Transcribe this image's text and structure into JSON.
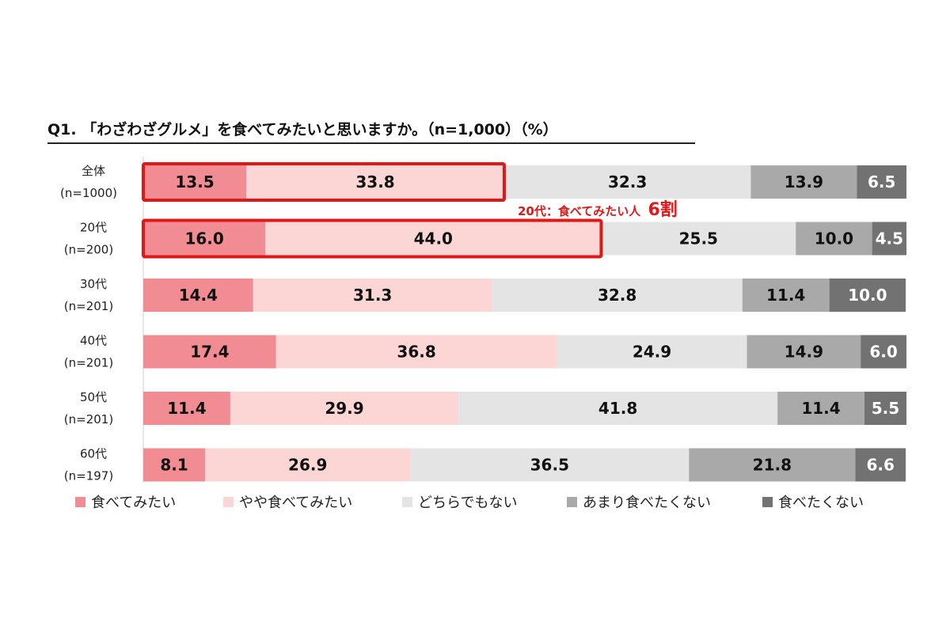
{
  "chart_data": {
    "type": "bar",
    "orientation": "horizontal-stacked-100",
    "title": "Q1. 「わざわざグルメ」を食べてみたいと思いますか。（n=1,000）（%）",
    "categories": [
      {
        "name": "全体",
        "n": "(n=1000)"
      },
      {
        "name": "20代",
        "n": "(n=200)"
      },
      {
        "name": "30代",
        "n": "(n=201)"
      },
      {
        "name": "40代",
        "n": "(n=201)"
      },
      {
        "name": "50代",
        "n": "(n=201)"
      },
      {
        "name": "60代",
        "n": "(n=197)"
      }
    ],
    "series": [
      {
        "name": "食べてみたい",
        "color": "#f08c92",
        "values": [
          13.5,
          16.0,
          14.4,
          17.4,
          11.4,
          8.1
        ]
      },
      {
        "name": "やや食べてみたい",
        "color": "#fcd6d4",
        "values": [
          33.8,
          44.0,
          31.3,
          36.8,
          29.9,
          26.9
        ]
      },
      {
        "name": "どちらでもない",
        "color": "#e4e4e4",
        "values": [
          32.3,
          25.5,
          32.8,
          24.9,
          41.8,
          36.5
        ]
      },
      {
        "name": "あまり食べたくない",
        "color": "#a9a9a9",
        "values": [
          13.9,
          10.0,
          11.4,
          14.9,
          11.4,
          21.8
        ]
      },
      {
        "name": "食べたくない",
        "color": "#727272",
        "values": [
          6.5,
          4.5,
          10.0,
          6.0,
          5.5,
          6.6
        ]
      }
    ],
    "xlim": [
      0,
      100
    ],
    "highlighted_rows": [
      0,
      1
    ],
    "annotation": {
      "text": "20代：食べてみたい人 ",
      "emphasis": "6割"
    },
    "legend_position": "bottom"
  }
}
